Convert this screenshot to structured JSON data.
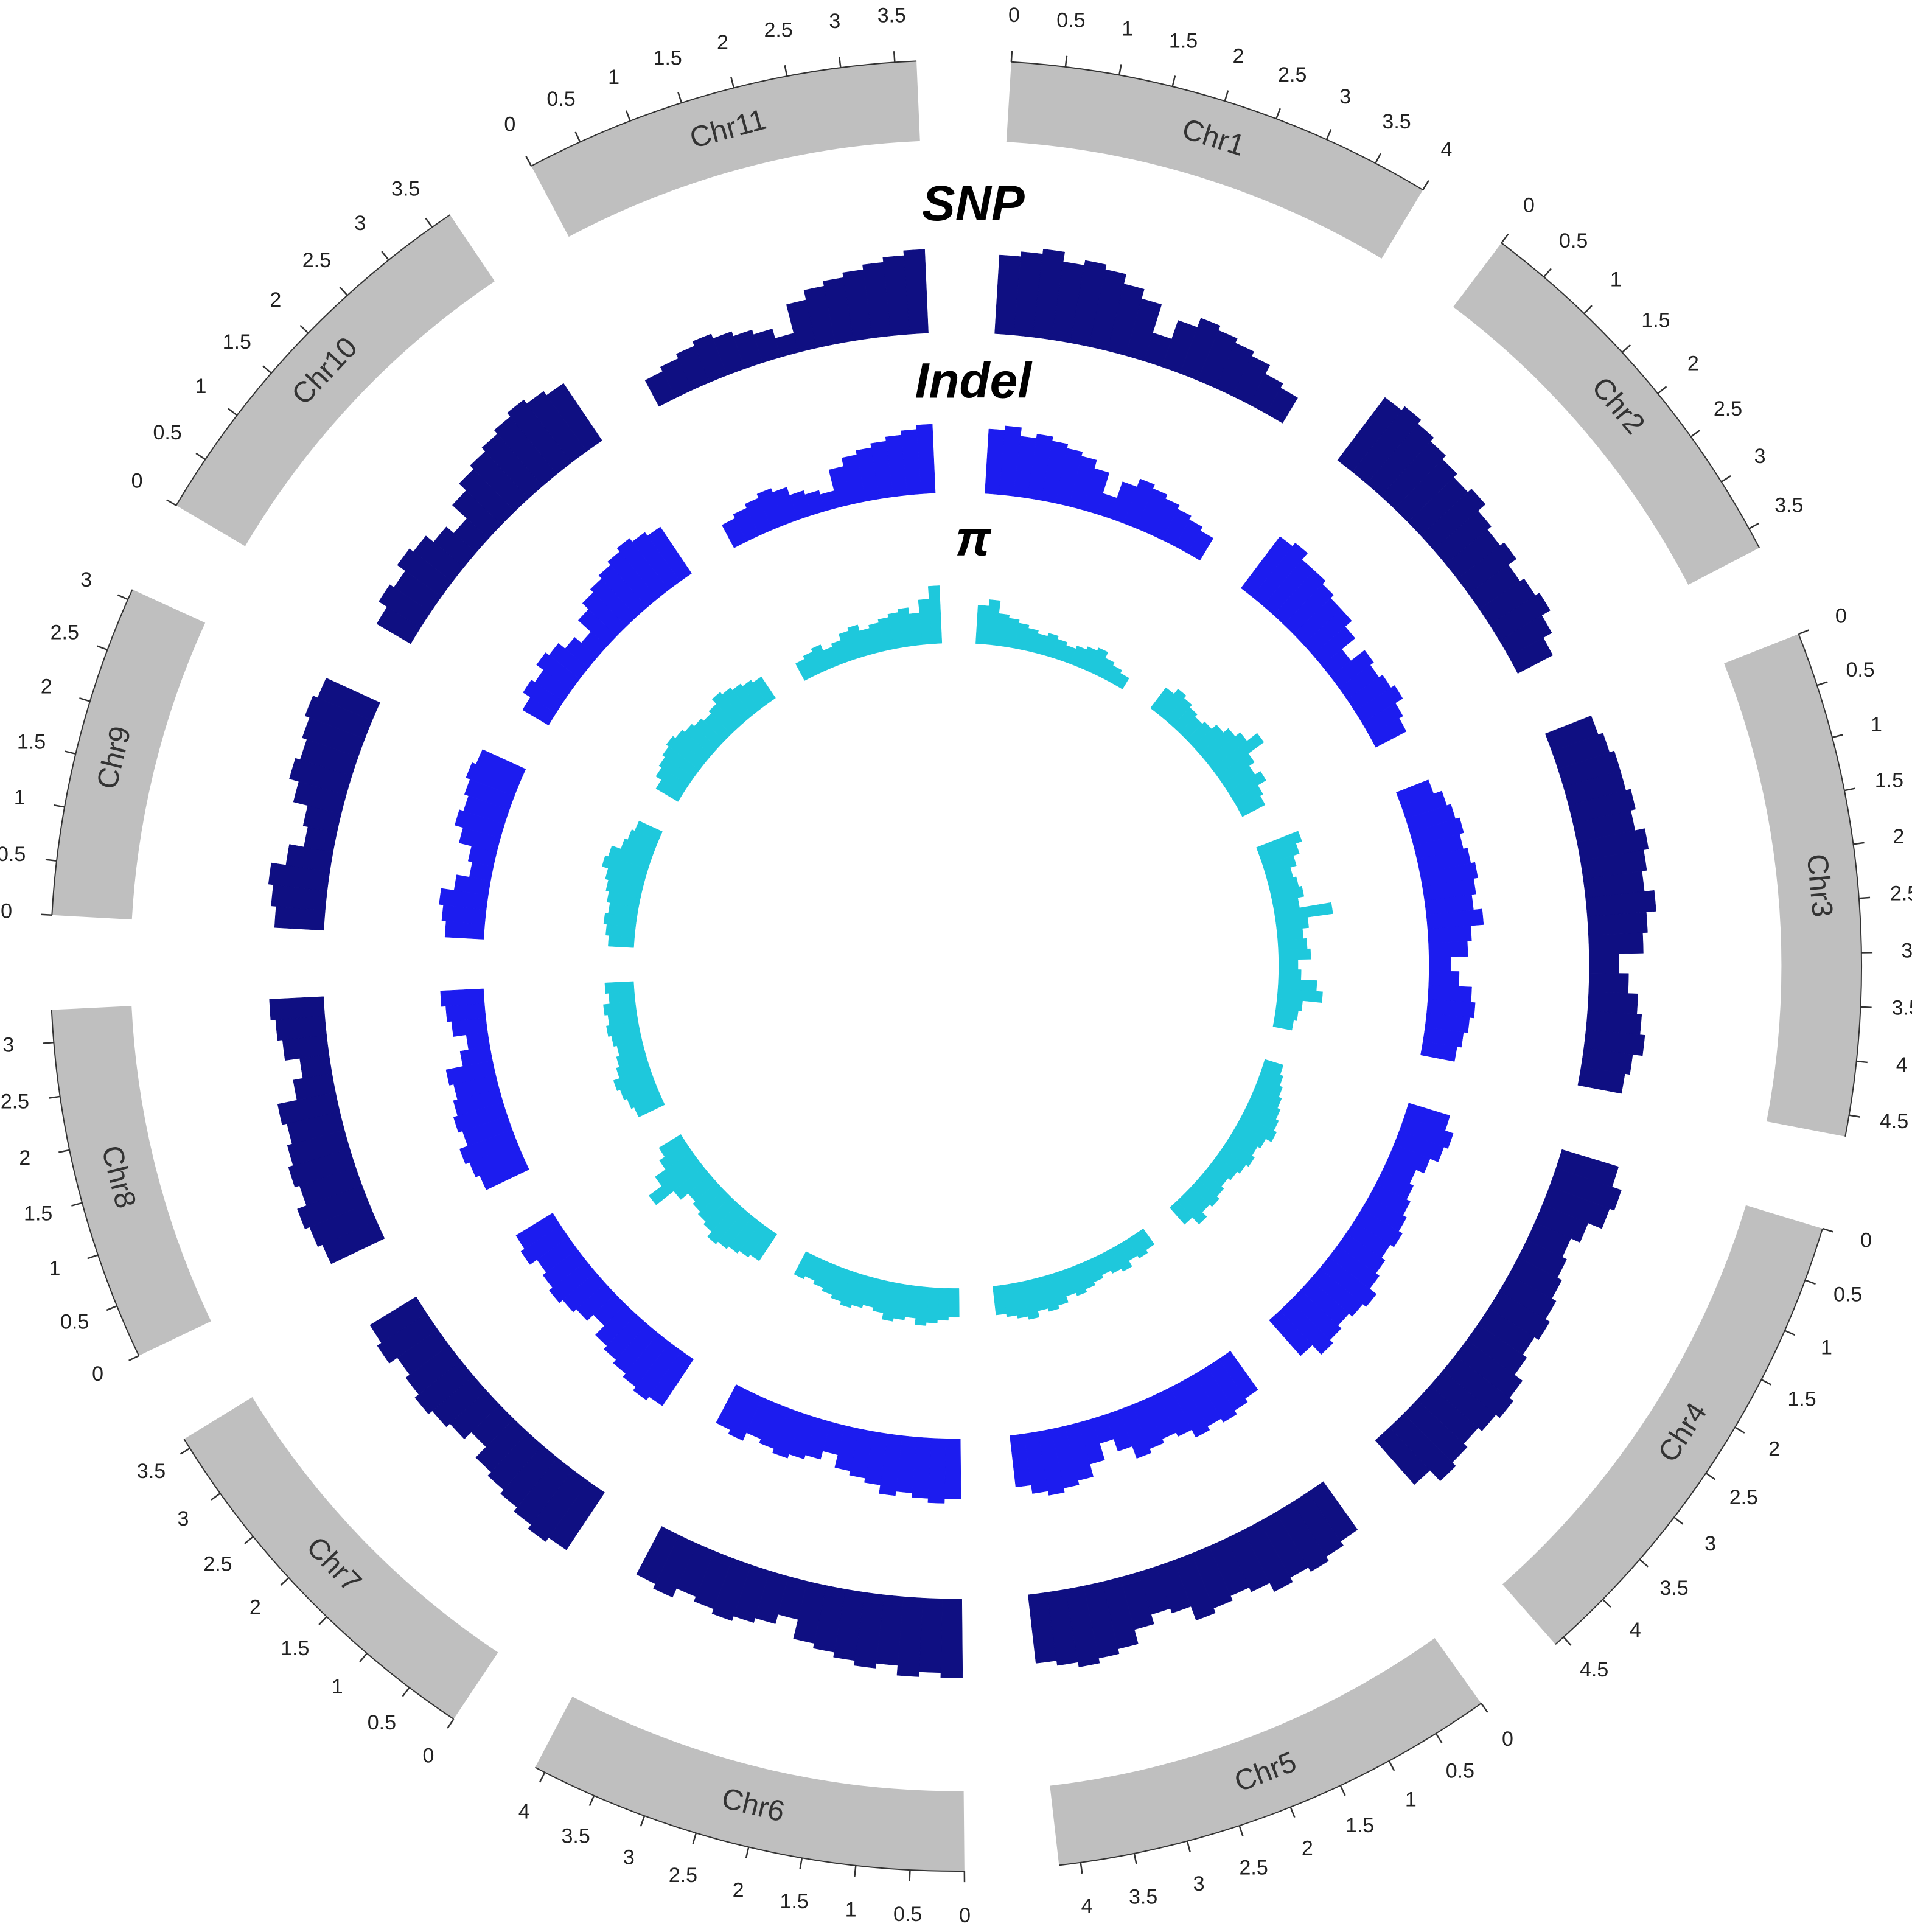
{
  "chart_data": {
    "type": "circos",
    "ideogram_color": "#bfbfbf",
    "chromosomes": [
      {
        "name": "Chr1",
        "length": 4.0,
        "ticks": [
          0,
          0.5,
          1,
          1.5,
          2,
          2.5,
          3,
          3.5,
          4
        ]
      },
      {
        "name": "Chr2",
        "length": 3.7,
        "ticks": [
          0,
          0.5,
          1,
          1.5,
          2,
          2.5,
          3,
          3.5
        ]
      },
      {
        "name": "Chr3",
        "length": 4.7,
        "ticks": [
          0,
          0.5,
          1,
          1.5,
          2,
          2.5,
          3,
          3.5,
          4,
          4.5
        ]
      },
      {
        "name": "Chr4",
        "length": 4.6,
        "ticks": [
          0,
          0.5,
          1,
          1.5,
          2,
          2.5,
          3,
          3.5,
          4,
          4.5
        ]
      },
      {
        "name": "Chr5",
        "length": 4.2,
        "ticks": [
          0,
          0.5,
          1,
          1.5,
          2,
          2.5,
          3,
          3.5,
          4
        ]
      },
      {
        "name": "Chr6",
        "length": 4.1,
        "ticks": [
          0,
          0.5,
          1,
          1.5,
          2,
          2.5,
          3,
          3.5,
          4
        ]
      },
      {
        "name": "Chr7",
        "length": 3.6,
        "ticks": [
          0,
          0.5,
          1,
          1.5,
          2,
          2.5,
          3,
          3.5
        ]
      },
      {
        "name": "Chr8",
        "length": 3.3,
        "ticks": [
          0,
          0.5,
          1,
          1.5,
          2,
          2.5,
          3
        ]
      },
      {
        "name": "Chr9",
        "length": 3.1,
        "ticks": [
          0,
          0.5,
          1,
          1.5,
          2,
          2.5,
          3
        ]
      },
      {
        "name": "Chr10",
        "length": 3.7,
        "ticks": [
          0,
          0.5,
          1,
          1.5,
          2,
          2.5,
          3,
          3.5
        ]
      },
      {
        "name": "Chr11",
        "length": 3.7,
        "ticks": [
          0,
          0.5,
          1,
          1.5,
          2,
          2.5,
          3,
          3.5
        ]
      }
    ],
    "series": [
      {
        "name": "SNP",
        "color": "#0f0f82",
        "values": [
          [
            0.8,
            0.85,
            0.9,
            0.8,
            0.85,
            0.8,
            0.7,
            0.6,
            0.3,
            0.5,
            0.6,
            0.55,
            0.5,
            0.45,
            0.35,
            0.3
          ],
          [
            0.8,
            0.85,
            0.8,
            0.75,
            0.7,
            0.65,
            0.7,
            0.6,
            0.55,
            0.6,
            0.5,
            0.55,
            0.6,
            0.5,
            0.4
          ],
          [
            0.5,
            0.55,
            0.6,
            0.6,
            0.65,
            0.6,
            0.7,
            0.65,
            0.6,
            0.7,
            0.6,
            0.55,
            0.3,
            0.4,
            0.5,
            0.55,
            0.6,
            0.5,
            0.45
          ],
          [
            0.6,
            0.7,
            0.65,
            0.5,
            0.4,
            0.45,
            0.5,
            0.55,
            0.6,
            0.55,
            0.6,
            0.7,
            0.75,
            0.7,
            0.65,
            0.7,
            0.75,
            0.6
          ],
          [
            0.6,
            0.65,
            0.7,
            0.65,
            0.7,
            0.6,
            0.55,
            0.6,
            0.65,
            0.5,
            0.45,
            0.55,
            0.7,
            0.75,
            0.8,
            0.75,
            0.7
          ],
          [
            0.8,
            0.75,
            0.8,
            0.7,
            0.75,
            0.7,
            0.65,
            0.6,
            0.4,
            0.5,
            0.55,
            0.6,
            0.55,
            0.5,
            0.6,
            0.55
          ],
          [
            0.7,
            0.75,
            0.7,
            0.65,
            0.6,
            0.55,
            0.4,
            0.5,
            0.55,
            0.6,
            0.55,
            0.5,
            0.6,
            0.55
          ],
          [
            0.6,
            0.65,
            0.7,
            0.6,
            0.65,
            0.6,
            0.55,
            0.6,
            0.4,
            0.3,
            0.45,
            0.5,
            0.55
          ],
          [
            0.5,
            0.55,
            0.6,
            0.45,
            0.3,
            0.35,
            0.5,
            0.6,
            0.55,
            0.6,
            0.65,
            0.6
          ],
          [
            0.4,
            0.5,
            0.45,
            0.55,
            0.5,
            0.4,
            0.3,
            0.5,
            0.6,
            0.65,
            0.7,
            0.75,
            0.8,
            0.75,
            0.7
          ],
          [
            0.3,
            0.35,
            0.4,
            0.45,
            0.4,
            0.35,
            0.3,
            0.2,
            0.5,
            0.6,
            0.65,
            0.7,
            0.75,
            0.8,
            0.85
          ]
        ]
      },
      {
        "name": "Indel",
        "color": "#1c1cef",
        "values": [
          [
            0.75,
            0.8,
            0.7,
            0.75,
            0.7,
            0.65,
            0.6,
            0.5,
            0.25,
            0.45,
            0.55,
            0.5,
            0.45,
            0.4,
            0.35,
            0.3
          ],
          [
            0.75,
            0.8,
            0.7,
            0.7,
            0.65,
            0.6,
            0.6,
            0.5,
            0.3,
            0.5,
            0.45,
            0.5,
            0.55,
            0.45,
            0.4
          ],
          [
            0.4,
            0.5,
            0.55,
            0.6,
            0.55,
            0.6,
            0.65,
            0.6,
            0.55,
            0.65,
            0.5,
            0.45,
            0.25,
            0.35,
            0.5,
            0.55,
            0.5,
            0.45,
            0.4
          ],
          [
            0.5,
            0.6,
            0.55,
            0.45,
            0.35,
            0.4,
            0.45,
            0.5,
            0.55,
            0.5,
            0.55,
            0.6,
            0.7,
            0.65,
            0.6,
            0.65,
            0.7,
            0.55
          ],
          [
            0.55,
            0.6,
            0.65,
            0.6,
            0.65,
            0.55,
            0.5,
            0.55,
            0.6,
            0.45,
            0.3,
            0.5,
            0.65,
            0.7,
            0.75,
            0.7,
            0.6
          ],
          [
            0.7,
            0.75,
            0.7,
            0.65,
            0.7,
            0.6,
            0.55,
            0.5,
            0.35,
            0.45,
            0.5,
            0.55,
            0.5,
            0.45,
            0.55,
            0.5
          ],
          [
            0.65,
            0.7,
            0.65,
            0.6,
            0.55,
            0.5,
            0.35,
            0.45,
            0.5,
            0.55,
            0.5,
            0.45,
            0.55,
            0.5
          ],
          [
            0.55,
            0.6,
            0.65,
            0.55,
            0.6,
            0.55,
            0.5,
            0.55,
            0.35,
            0.25,
            0.4,
            0.45,
            0.5
          ],
          [
            0.45,
            0.5,
            0.55,
            0.4,
            0.25,
            0.3,
            0.45,
            0.55,
            0.5,
            0.55,
            0.6,
            0.55
          ],
          [
            0.35,
            0.45,
            0.4,
            0.5,
            0.45,
            0.35,
            0.25,
            0.45,
            0.55,
            0.6,
            0.65,
            0.7,
            0.75,
            0.7,
            0.65
          ],
          [
            0.3,
            0.35,
            0.4,
            0.45,
            0.4,
            0.3,
            0.25,
            0.2,
            0.45,
            0.55,
            0.6,
            0.65,
            0.7,
            0.75,
            0.8
          ]
        ]
      },
      {
        "name": "π",
        "color": "#1ec8dc",
        "values": [
          [
            0.6,
            0.7,
            0.5,
            0.45,
            0.4,
            0.35,
            0.3,
            0.35,
            0.3,
            0.25,
            0.3,
            0.35,
            0.4,
            0.3,
            0.25,
            0.2
          ],
          [
            0.4,
            0.5,
            0.45,
            0.4,
            0.35,
            0.4,
            0.5,
            0.6,
            0.7,
            0.9,
            0.6,
            0.5,
            0.6,
            0.45,
            0.4
          ],
          [
            0.7,
            0.6,
            0.5,
            0.4,
            0.45,
            0.5,
            0.4,
            0.9,
            0.5,
            0.4,
            0.45,
            0.5,
            0.3,
            0.35,
            0.6,
            0.7,
            0.4,
            0.35,
            0.3
          ],
          [
            0.3,
            0.35,
            0.4,
            0.45,
            0.5,
            0.55,
            0.6,
            0.5,
            0.45,
            0.5,
            0.45,
            0.4,
            0.35,
            0.4,
            0.45,
            0.4,
            0.5,
            0.35
          ],
          [
            0.3,
            0.35,
            0.3,
            0.4,
            0.35,
            0.3,
            0.35,
            0.4,
            0.45,
            0.4,
            0.5,
            0.55,
            0.5,
            0.6,
            0.55,
            0.5,
            0.45
          ],
          [
            0.45,
            0.5,
            0.55,
            0.6,
            0.5,
            0.55,
            0.6,
            0.5,
            0.45,
            0.5,
            0.55,
            0.5,
            0.45,
            0.4,
            0.35,
            0.4
          ],
          [
            0.5,
            0.55,
            0.6,
            0.65,
            0.7,
            0.6,
            0.55,
            0.5,
            0.45,
            0.6,
            0.95,
            0.7,
            0.5,
            0.4
          ],
          [
            0.45,
            0.5,
            0.55,
            0.6,
            0.5,
            0.45,
            0.4,
            0.45,
            0.5,
            0.45,
            0.5,
            0.4,
            0.45
          ],
          [
            0.4,
            0.45,
            0.5,
            0.45,
            0.5,
            0.55,
            0.6,
            0.7,
            0.65,
            0.5,
            0.45,
            0.4
          ],
          [
            0.4,
            0.5,
            0.55,
            0.6,
            0.65,
            0.6,
            0.55,
            0.5,
            0.45,
            0.5,
            0.6,
            0.55,
            0.5,
            0.45,
            0.4
          ],
          [
            0.3,
            0.35,
            0.4,
            0.3,
            0.35,
            0.45,
            0.5,
            0.4,
            0.45,
            0.5,
            0.55,
            0.6,
            0.5,
            0.7,
            0.9
          ]
        ]
      }
    ]
  }
}
